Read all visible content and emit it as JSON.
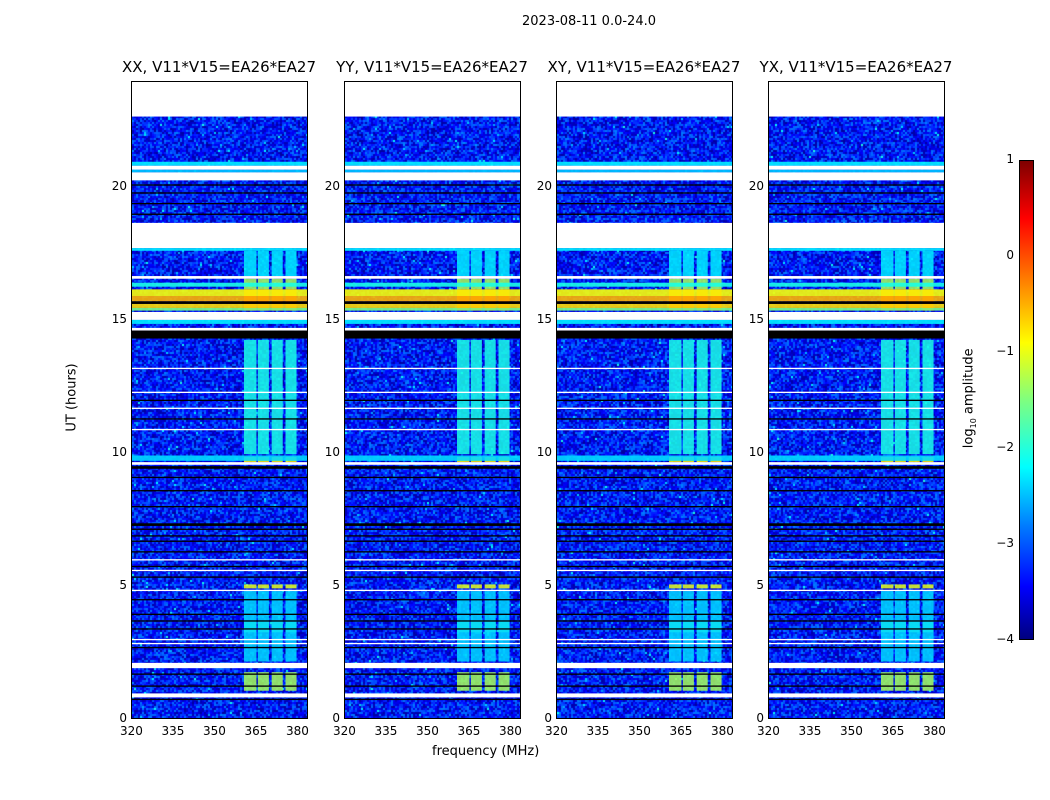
{
  "suptitle": "2023-08-11 0.0-24.0",
  "chart_data": {
    "type": "heatmap",
    "xlabel": "frequency (MHz)",
    "ylabel": "UT (hours)",
    "xlim": [
      320,
      384
    ],
    "ylim": [
      0,
      24
    ],
    "xticks": [
      "320",
      "335",
      "350",
      "365",
      "380"
    ],
    "xtick_values": [
      320,
      335,
      350,
      365,
      380
    ],
    "yticks": [
      "0",
      "5",
      "10",
      "15",
      "20"
    ],
    "ytick_values": [
      0,
      5,
      10,
      15,
      20
    ],
    "colorbar": {
      "label": "log10 amplitude",
      "label_base": "log",
      "label_sub": "10",
      "label_rest": " amplitude",
      "range": [
        -4,
        1
      ],
      "ticks": [
        "1",
        "0",
        "−1",
        "−2",
        "−3",
        "−4"
      ],
      "tick_values": [
        1,
        0,
        -1,
        -2,
        -3,
        -4
      ],
      "colormap": "jet"
    },
    "background_level": -3.3,
    "panels": [
      {
        "title": "XX, V11*V15=EA26*EA27"
      },
      {
        "title": "YY, V11*V15=EA26*EA27"
      },
      {
        "title": "XY, V11*V15=EA26*EA27"
      },
      {
        "title": "YX, V11*V15=EA26*EA27"
      }
    ],
    "bands": [
      [
        22.7,
        24,
        "flag"
      ],
      [
        20.85,
        21.0,
        -2.2
      ],
      [
        20.7,
        20.85,
        "flag"
      ],
      [
        20.6,
        20.7,
        -2.4
      ],
      [
        20.3,
        20.6,
        "flag"
      ],
      [
        20.1,
        20.15,
        "zero"
      ],
      [
        19.8,
        19.85,
        "zero"
      ],
      [
        19.4,
        19.45,
        "zero"
      ],
      [
        19.0,
        19.05,
        "zero"
      ],
      [
        17.75,
        18.7,
        "flag"
      ],
      [
        17.65,
        17.75,
        -2.2
      ],
      [
        16.6,
        16.7,
        "flag"
      ],
      [
        16.3,
        16.45,
        -2.0
      ],
      [
        15.95,
        16.2,
        -0.9
      ],
      [
        15.75,
        15.95,
        -0.5
      ],
      [
        15.65,
        15.75,
        "zero"
      ],
      [
        15.5,
        15.65,
        -0.7
      ],
      [
        15.4,
        15.5,
        -1.5
      ],
      [
        15.05,
        15.35,
        "flag"
      ],
      [
        14.9,
        15.05,
        -2.2
      ],
      [
        14.65,
        14.75,
        "flag"
      ],
      [
        14.35,
        14.65,
        "zero"
      ],
      [
        13.2,
        13.25,
        "flag"
      ],
      [
        12.3,
        12.35,
        "flag"
      ],
      [
        12.0,
        12.05,
        "zero"
      ],
      [
        11.7,
        11.75,
        "flag"
      ],
      [
        11.3,
        11.35,
        "zero"
      ],
      [
        10.9,
        10.95,
        "flag"
      ],
      [
        9.75,
        9.95,
        -2.3
      ],
      [
        9.6,
        9.7,
        "flag"
      ],
      [
        9.45,
        9.55,
        "zero"
      ],
      [
        9.1,
        9.15,
        "zero"
      ],
      [
        8.6,
        8.65,
        "zero"
      ],
      [
        8.0,
        8.05,
        "zero"
      ],
      [
        7.3,
        7.4,
        "zero"
      ],
      [
        7.15,
        7.2,
        "zero"
      ],
      [
        6.9,
        6.95,
        "zero"
      ],
      [
        6.7,
        6.75,
        "zero"
      ],
      [
        6.3,
        6.35,
        "zero"
      ],
      [
        6.0,
        6.05,
        "flag"
      ],
      [
        5.75,
        5.8,
        "zero"
      ],
      [
        5.6,
        5.65,
        "flag"
      ],
      [
        5.35,
        5.4,
        "zero"
      ],
      [
        4.85,
        4.9,
        "flag"
      ],
      [
        4.5,
        4.55,
        "zero"
      ],
      [
        3.95,
        4.0,
        "zero"
      ],
      [
        3.7,
        3.75,
        "zero"
      ],
      [
        3.4,
        3.45,
        "zero"
      ],
      [
        3.0,
        3.05,
        "flag"
      ],
      [
        2.85,
        2.9,
        "flag"
      ],
      [
        2.7,
        2.75,
        "zero"
      ],
      [
        1.95,
        2.15,
        "flag"
      ],
      [
        1.7,
        1.75,
        "zero"
      ],
      [
        1.25,
        1.3,
        "zero"
      ],
      [
        0.85,
        1.0,
        "flag"
      ],
      [
        0.75,
        0.8,
        "zero"
      ]
    ],
    "rfi_channels": [
      [
        360.5,
        365
      ],
      [
        365.5,
        369.5
      ],
      [
        370.5,
        374.5
      ],
      [
        375.5,
        379.5
      ]
    ],
    "rfi_blocks": [
      [
        16.7,
        17.65,
        -2.2
      ],
      [
        16.2,
        16.6,
        -1.3
      ],
      [
        15.4,
        16.2,
        0.1
      ],
      [
        10.0,
        14.3,
        -2.0
      ],
      [
        9.7,
        9.9,
        -0.8
      ],
      [
        4.95,
        5.1,
        -1.0
      ],
      [
        3.3,
        3.7,
        -1.8
      ],
      [
        2.2,
        4.85,
        -2.3
      ],
      [
        1.1,
        1.8,
        -1.3
      ]
    ]
  }
}
